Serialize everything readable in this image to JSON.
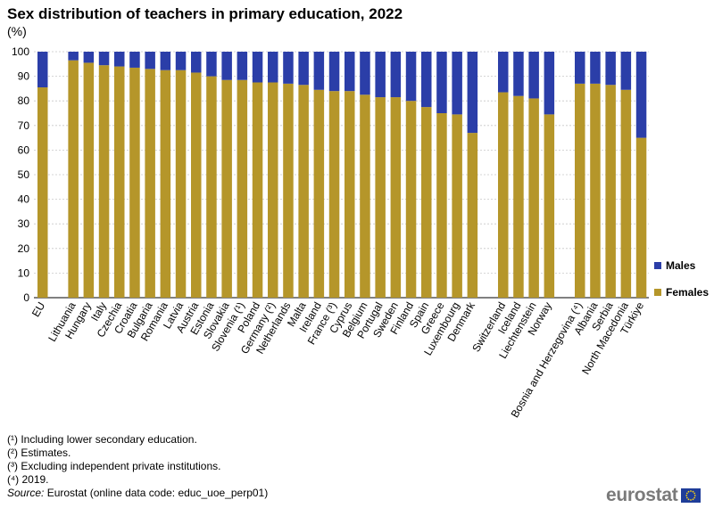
{
  "title": "Sex distribution of teachers in primary education, 2022",
  "unit": "(%)",
  "legend": [
    {
      "label": "Males",
      "color": "#2b3ea8"
    },
    {
      "label": "Females",
      "color": "#b5962a"
    }
  ],
  "notes": [
    "(¹) Including  lower secondary education.",
    "(²) Estimates.",
    "(³) Excluding independent private institutions.",
    "(⁴) 2019."
  ],
  "source_label": "Source:",
  "source_text": " Eurostat (online data code: educ_uoe_perp01)",
  "logo_text": "eurostat",
  "chart_data": {
    "type": "bar",
    "stacked": true,
    "ylim": [
      0,
      100
    ],
    "yticks": [
      0,
      10,
      20,
      30,
      40,
      50,
      60,
      70,
      80,
      90,
      100
    ],
    "grid": true,
    "legend_position": "right",
    "groups": [
      [
        "EU"
      ],
      [
        "Lithuania",
        "Hungary",
        "Italy",
        "Czechia",
        "Croatia",
        "Bulgaria",
        "Romania",
        "Latvia",
        "Austria",
        "Estonia",
        "Slovakia",
        "Slovenia (¹)",
        "Poland",
        "Germany (²)",
        "Netherlands",
        "Malta",
        "Ireland",
        "France (³)",
        "Cyprus",
        "Belgium",
        "Portugal",
        "Sweden",
        "Finland",
        "Spain",
        "Greece",
        "Luxembourg",
        "Denmark"
      ],
      [
        "Switzerland",
        "Iceland",
        "Liechtenstein",
        "Norway"
      ],
      [
        "Bosnia and Herzegovina (⁴)",
        "Albania",
        "Serbia",
        "North Macedonia",
        "Türkiye"
      ]
    ],
    "categories": [
      "EU",
      "Lithuania",
      "Hungary",
      "Italy",
      "Czechia",
      "Croatia",
      "Bulgaria",
      "Romania",
      "Latvia",
      "Austria",
      "Estonia",
      "Slovakia",
      "Slovenia (¹)",
      "Poland",
      "Germany (²)",
      "Netherlands",
      "Malta",
      "Ireland",
      "France (³)",
      "Cyprus",
      "Belgium",
      "Portugal",
      "Sweden",
      "Finland",
      "Spain",
      "Greece",
      "Luxembourg",
      "Denmark",
      "Switzerland",
      "Iceland",
      "Liechtenstein",
      "Norway",
      "Bosnia and Herzegovina (⁴)",
      "Albania",
      "Serbia",
      "North Macedonia",
      "Türkiye"
    ],
    "series": [
      {
        "name": "Females",
        "color": "#b5962a",
        "values": [
          85.5,
          96.5,
          95.5,
          94.5,
          94,
          93.5,
          93,
          92.5,
          92.5,
          91.5,
          90,
          88.5,
          88.5,
          87.5,
          87.5,
          87,
          86.5,
          84.5,
          84,
          84,
          82.5,
          81.5,
          81.5,
          80,
          77.5,
          75,
          74.5,
          67,
          83.5,
          82,
          81,
          74.5,
          87,
          87,
          86.5,
          84.5,
          65
        ]
      },
      {
        "name": "Males",
        "color": "#2b3ea8",
        "values": [
          14.5,
          3.5,
          4.5,
          5.5,
          6,
          6.5,
          7,
          7.5,
          7.5,
          8.5,
          10,
          11.5,
          11.5,
          12.5,
          12.5,
          13,
          13.5,
          15.5,
          16,
          16,
          17.5,
          18.5,
          18.5,
          20,
          22.5,
          25,
          25.5,
          33,
          16.5,
          18,
          19,
          25.5,
          13,
          13,
          13.5,
          15.5,
          35
        ]
      }
    ]
  }
}
